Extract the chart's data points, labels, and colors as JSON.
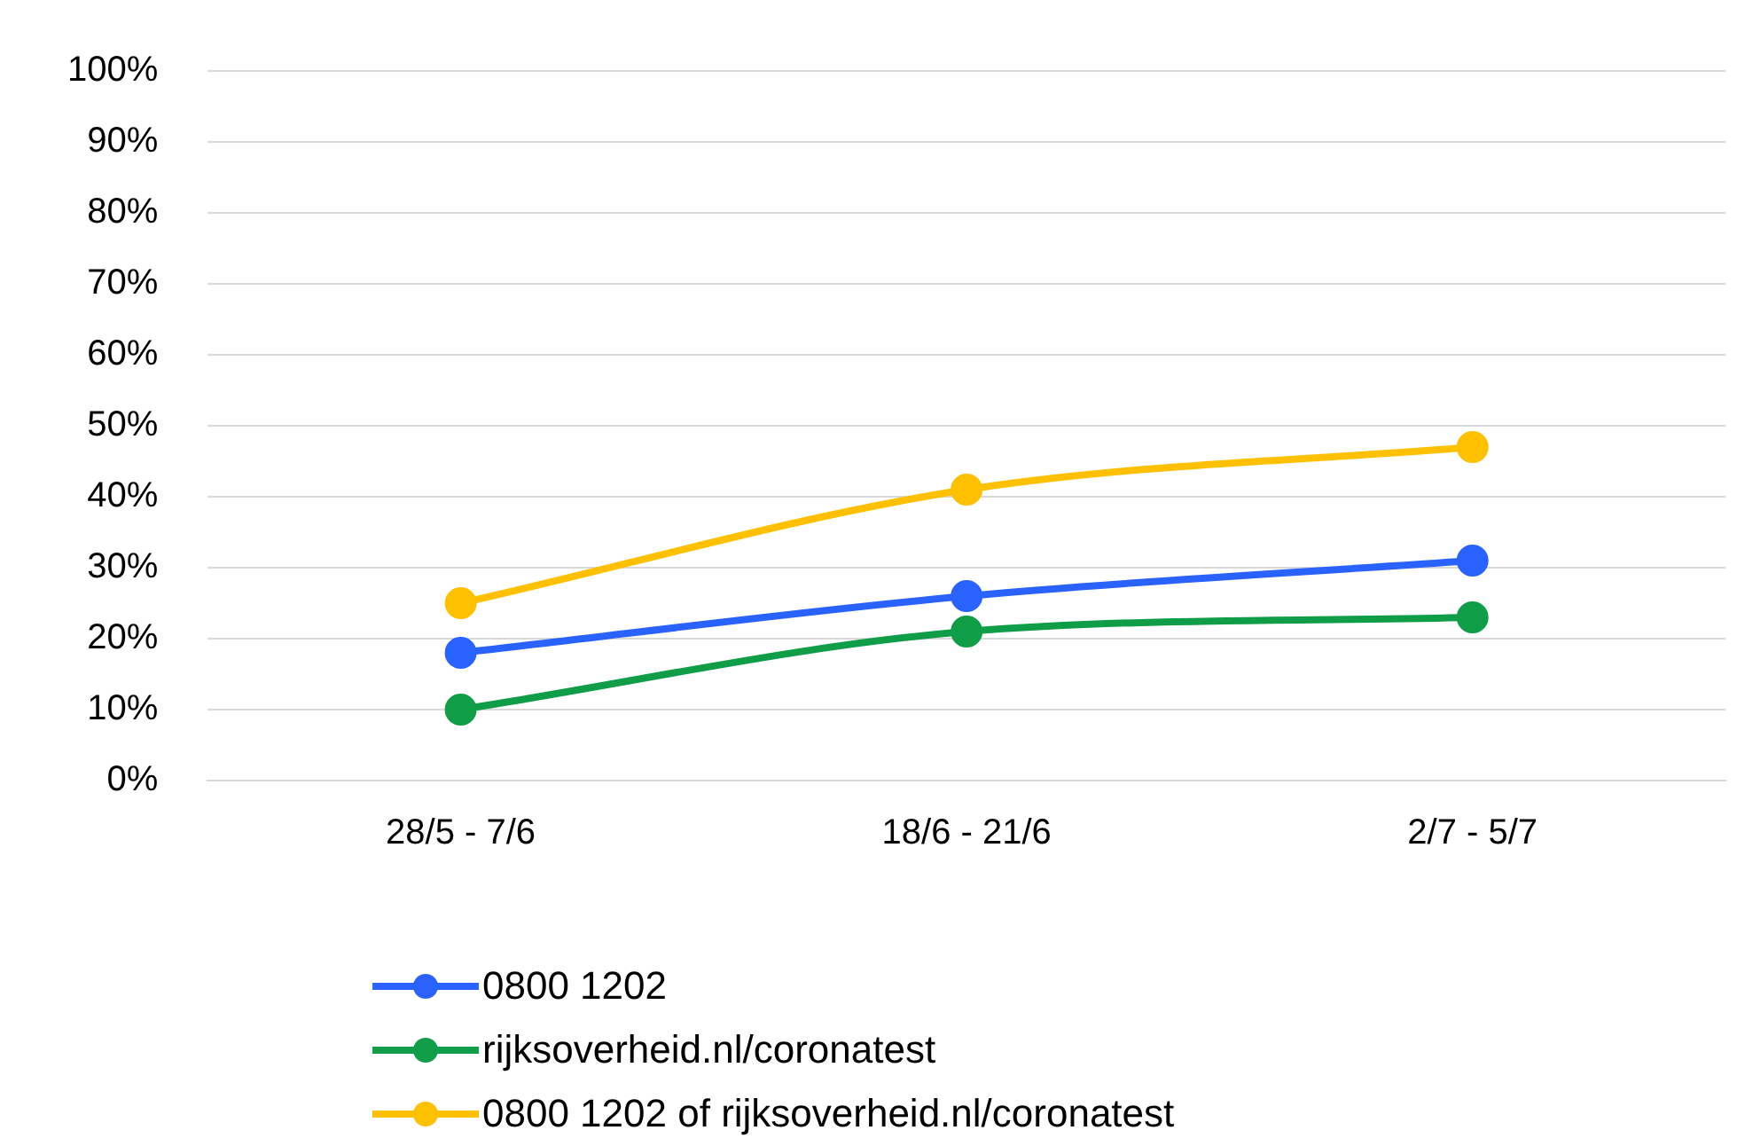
{
  "chart_data": {
    "type": "line",
    "categories": [
      "28/5 - 7/6",
      "18/6 - 21/6",
      "2/7 - 5/7"
    ],
    "series": [
      {
        "name": "0800 1202",
        "color": "#2962ff",
        "values": [
          18,
          26,
          31
        ]
      },
      {
        "name": "rijksoverheid.nl/coronatest",
        "color": "#0f9d48",
        "values": [
          10,
          21,
          23
        ]
      },
      {
        "name": "0800 1202 of rijksoverheid.nl/coronatest",
        "color": "#ffc000",
        "values": [
          25,
          41,
          47
        ]
      }
    ],
    "ylim": [
      0,
      100
    ],
    "yticks": [
      {
        "value": 0,
        "label": "0%"
      },
      {
        "value": 10,
        "label": "10%"
      },
      {
        "value": 20,
        "label": "20%"
      },
      {
        "value": 30,
        "label": "30%"
      },
      {
        "value": 40,
        "label": "40%"
      },
      {
        "value": 50,
        "label": "50%"
      },
      {
        "value": 60,
        "label": "60%"
      },
      {
        "value": 70,
        "label": "70%"
      },
      {
        "value": 80,
        "label": "80%"
      },
      {
        "value": 90,
        "label": "90%"
      },
      {
        "value": 100,
        "label": "100%"
      }
    ],
    "grid": "y",
    "legend": "bottom",
    "marker": "circle",
    "line_style": "solid"
  }
}
